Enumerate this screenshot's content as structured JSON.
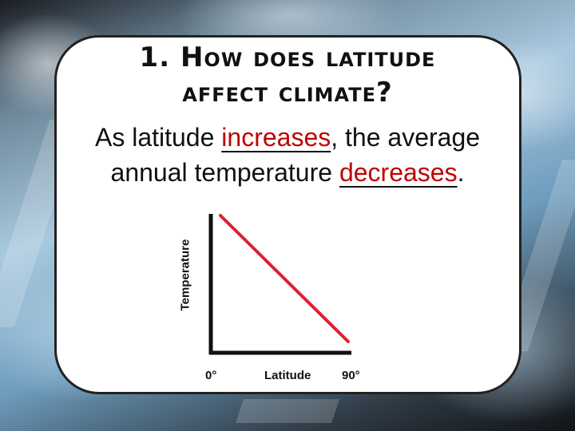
{
  "slide": {
    "title_line1": "1. How does latitude",
    "title_line2": "affect climate?",
    "sentence1_prefix": "As latitude ",
    "sentence1_blank": "increases",
    "sentence1_suffix": ", the average",
    "sentence2_prefix": "annual temperature ",
    "sentence2_blank": "decreases",
    "sentence2_suffix": "."
  },
  "colors": {
    "panel": "#ffffff",
    "text": "#111111",
    "line": "#e0202a"
  },
  "chart_data": {
    "type": "line",
    "title": "",
    "xlabel": "Latitude",
    "ylabel": "Temperature",
    "x_tick_labels": [
      "0°",
      "90°"
    ],
    "series": [
      {
        "x": [
          0,
          90
        ],
        "y": [
          1,
          0
        ]
      }
    ],
    "xlim": [
      0,
      90
    ],
    "ylim": [
      0,
      1
    ],
    "grid": false
  }
}
